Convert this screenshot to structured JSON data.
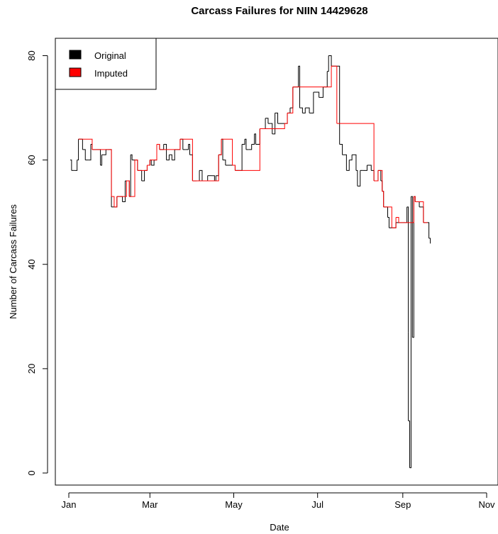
{
  "chart_data": {
    "type": "line",
    "title": "Carcass Failures for NIIN 14429628",
    "xlabel": "Date",
    "ylabel": "Number of Carcass Failures",
    "x_ticks": [
      "Jan",
      "Mar",
      "May",
      "Jul",
      "Sep",
      "Nov"
    ],
    "y_ticks": [
      "0",
      "20",
      "40",
      "60",
      "80"
    ],
    "ylim": [
      0,
      80
    ],
    "legend": {
      "placement": "top-left",
      "items": [
        {
          "label": "Original",
          "color": "#000000"
        },
        {
          "label": "Imputed",
          "color": "#ff0000"
        }
      ]
    },
    "series": [
      {
        "name": "Original",
        "color": "#000000",
        "points": [
          [
            "01-02",
            60
          ],
          [
            "01-03",
            58
          ],
          [
            "01-05",
            58
          ],
          [
            "01-07",
            60
          ],
          [
            "01-08",
            64
          ],
          [
            "01-10",
            64
          ],
          [
            "01-11",
            62
          ],
          [
            "01-13",
            60
          ],
          [
            "01-15",
            60
          ],
          [
            "01-17",
            63
          ],
          [
            "01-18",
            62
          ],
          [
            "01-21",
            62
          ],
          [
            "01-24",
            59
          ],
          [
            "01-25",
            61
          ],
          [
            "01-26",
            61
          ],
          [
            "01-28",
            62
          ],
          [
            "01-30",
            62
          ],
          [
            "02-01",
            51
          ],
          [
            "02-03",
            51
          ],
          [
            "02-05",
            53
          ],
          [
            "02-07",
            53
          ],
          [
            "02-09",
            52
          ],
          [
            "02-11",
            56
          ],
          [
            "02-12",
            56
          ],
          [
            "02-14",
            53
          ],
          [
            "02-15",
            61
          ],
          [
            "02-16",
            60
          ],
          [
            "02-18",
            60
          ],
          [
            "02-20",
            58
          ],
          [
            "02-23",
            56
          ],
          [
            "02-25",
            58
          ],
          [
            "02-27",
            59
          ],
          [
            "03-01",
            60
          ],
          [
            "03-02",
            59
          ],
          [
            "03-04",
            60
          ],
          [
            "03-06",
            63
          ],
          [
            "03-08",
            62
          ],
          [
            "03-11",
            63
          ],
          [
            "03-13",
            60
          ],
          [
            "03-15",
            61
          ],
          [
            "03-17",
            60
          ],
          [
            "03-19",
            62
          ],
          [
            "03-21",
            62
          ],
          [
            "03-23",
            64
          ],
          [
            "03-25",
            62
          ],
          [
            "03-27",
            62
          ],
          [
            "03-29",
            63
          ],
          [
            "03-30",
            61
          ],
          [
            "04-01",
            56
          ],
          [
            "04-04",
            56
          ],
          [
            "04-06",
            58
          ],
          [
            "04-08",
            56
          ],
          [
            "04-12",
            57
          ],
          [
            "04-15",
            57
          ],
          [
            "04-17",
            56
          ],
          [
            "04-18",
            57
          ],
          [
            "04-20",
            61
          ],
          [
            "04-22",
            64
          ],
          [
            "04-23",
            60
          ],
          [
            "04-25",
            59
          ],
          [
            "04-30",
            59
          ],
          [
            "05-02",
            58
          ],
          [
            "05-05",
            58
          ],
          [
            "05-07",
            63
          ],
          [
            "05-09",
            64
          ],
          [
            "05-10",
            62
          ],
          [
            "05-12",
            62
          ],
          [
            "05-14",
            63
          ],
          [
            "05-16",
            65
          ],
          [
            "05-17",
            63
          ],
          [
            "05-20",
            66
          ],
          [
            "05-22",
            66
          ],
          [
            "05-24",
            68
          ],
          [
            "05-26",
            67
          ],
          [
            "05-28",
            67
          ],
          [
            "05-29",
            65
          ],
          [
            "05-31",
            69
          ],
          [
            "06-02",
            67
          ],
          [
            "06-07",
            67
          ],
          [
            "06-09",
            69
          ],
          [
            "06-11",
            70
          ],
          [
            "06-13",
            74
          ],
          [
            "06-15",
            74
          ],
          [
            "06-17",
            78
          ],
          [
            "06-18",
            70
          ],
          [
            "06-20",
            69
          ],
          [
            "06-22",
            70
          ],
          [
            "06-25",
            69
          ],
          [
            "06-28",
            73
          ],
          [
            "07-02",
            72
          ],
          [
            "07-05",
            74
          ],
          [
            "07-08",
            77
          ],
          [
            "07-09",
            80
          ],
          [
            "07-11",
            78
          ],
          [
            "07-17",
            63
          ],
          [
            "07-19",
            61
          ],
          [
            "07-22",
            58
          ],
          [
            "07-24",
            60
          ],
          [
            "07-26",
            61
          ],
          [
            "07-29",
            58
          ],
          [
            "07-30",
            55
          ],
          [
            "08-01",
            58
          ],
          [
            "08-03",
            58
          ],
          [
            "08-06",
            59
          ],
          [
            "08-09",
            58
          ],
          [
            "08-11",
            56
          ],
          [
            "08-14",
            58
          ],
          [
            "08-16",
            56
          ],
          [
            "08-17",
            54
          ],
          [
            "08-18",
            51
          ],
          [
            "08-21",
            49
          ],
          [
            "08-22",
            47
          ],
          [
            "08-24",
            47
          ],
          [
            "08-27",
            48
          ],
          [
            "09-03",
            48
          ],
          [
            "09-04",
            51
          ],
          [
            "09-05",
            27
          ],
          [
            "09-05",
            10
          ],
          [
            "09-06",
            1
          ],
          [
            "09-07",
            53
          ],
          [
            "09-08",
            26
          ],
          [
            "09-09",
            53
          ],
          [
            "09-10",
            52
          ],
          [
            "09-13",
            51
          ],
          [
            "09-16",
            48
          ],
          [
            "09-20",
            45
          ],
          [
            "09-21",
            44
          ]
        ]
      },
      {
        "name": "Imputed",
        "color": "#ff0000",
        "points": [
          [
            "01-08",
            64
          ],
          [
            "01-10",
            64
          ],
          [
            "01-18",
            62
          ],
          [
            "01-21",
            62
          ],
          [
            "01-28",
            62
          ],
          [
            "01-30",
            62
          ],
          [
            "02-01",
            53
          ],
          [
            "02-03",
            51
          ],
          [
            "02-05",
            53
          ],
          [
            "02-07",
            53
          ],
          [
            "02-12",
            56
          ],
          [
            "02-14",
            53
          ],
          [
            "02-18",
            60
          ],
          [
            "02-20",
            58
          ],
          [
            "02-27",
            59
          ],
          [
            "03-01",
            60
          ],
          [
            "03-06",
            63
          ],
          [
            "03-08",
            62
          ],
          [
            "03-21",
            62
          ],
          [
            "03-23",
            64
          ],
          [
            "04-01",
            56
          ],
          [
            "04-04",
            56
          ],
          [
            "04-20",
            61
          ],
          [
            "04-22",
            64
          ],
          [
            "04-30",
            59
          ],
          [
            "05-02",
            58
          ],
          [
            "05-20",
            66
          ],
          [
            "05-22",
            66
          ],
          [
            "06-07",
            67
          ],
          [
            "06-09",
            69
          ],
          [
            "06-13",
            74
          ],
          [
            "06-15",
            74
          ],
          [
            "07-11",
            78
          ],
          [
            "07-13",
            78
          ],
          [
            "07-15",
            67
          ],
          [
            "08-11",
            56
          ],
          [
            "08-14",
            58
          ],
          [
            "08-17",
            54
          ],
          [
            "08-18",
            51
          ],
          [
            "08-24",
            47
          ],
          [
            "08-27",
            49
          ],
          [
            "08-29",
            48
          ],
          [
            "09-02",
            48
          ],
          [
            "09-09",
            53
          ],
          [
            "09-10",
            52
          ],
          [
            "09-16",
            48
          ],
          [
            "09-19",
            48
          ]
        ]
      }
    ]
  }
}
